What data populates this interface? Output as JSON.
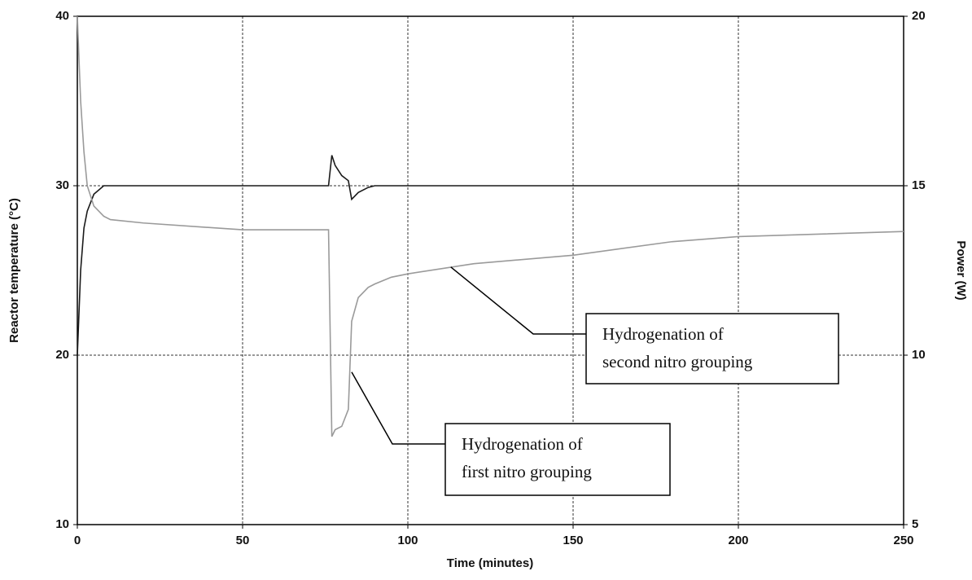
{
  "chart_data": {
    "type": "line",
    "xlabel": "Time (minutes)",
    "ylabel": "Reactor temperature (°C)",
    "y2label": "Power (W)",
    "x": [
      0,
      1,
      2,
      3,
      5,
      8,
      10,
      20,
      50,
      76,
      77,
      78,
      80,
      82,
      83,
      85,
      88,
      90,
      95,
      100,
      120,
      150,
      180,
      200,
      250
    ],
    "series": [
      {
        "color": "#1a1a1a",
        "values": [
          20,
          25,
          27.5,
          28.5,
          29.5,
          30,
          30,
          30,
          30,
          30,
          31.8,
          31.2,
          30.6,
          30.3,
          29.2,
          29.6,
          29.9,
          30,
          30,
          30,
          30,
          30,
          30,
          30,
          30
        ]
      },
      {
        "color": "#9a9a9a",
        "axis": "y2",
        "values": [
          20,
          17.5,
          16,
          15,
          14.4,
          14.1,
          14,
          13.9,
          13.7,
          13.7,
          7.6,
          7.8,
          7.9,
          8.4,
          11,
          11.7,
          12,
          12.1,
          12.3,
          12.4,
          12.7,
          12.95,
          13.35,
          13.5,
          13.65
        ]
      }
    ],
    "xlim": [
      0,
      250
    ],
    "xticks": [
      0,
      50,
      100,
      150,
      200,
      250
    ],
    "ylim": [
      10,
      40
    ],
    "yticks": [
      10,
      20,
      30,
      40
    ],
    "y2lim": [
      5,
      20
    ],
    "y2ticks": [
      5,
      10,
      15,
      20
    ],
    "grid": true,
    "annotations": [
      {
        "lines": [
          "Hydrogenation of",
          "second nitro grouping"
        ],
        "x": 113,
        "y": 12.6,
        "axis": "y2"
      },
      {
        "lines": [
          "Hydrogenation of",
          "first nitro grouping"
        ],
        "x": 83,
        "y": 9.5,
        "axis": "y2"
      }
    ]
  }
}
